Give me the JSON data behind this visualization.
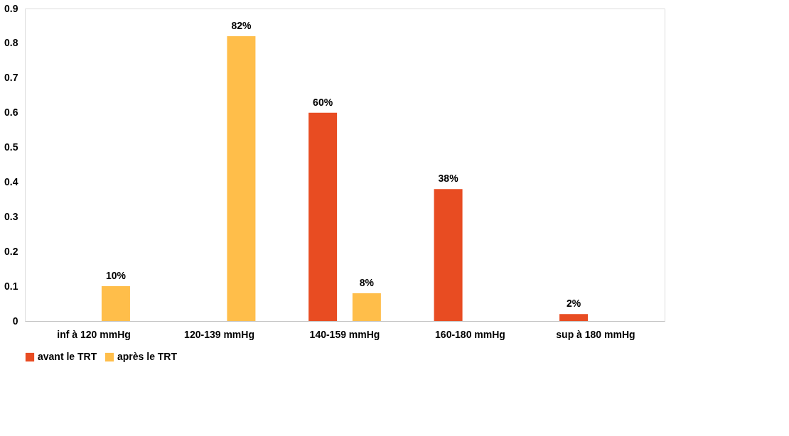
{
  "chart_data": {
    "type": "bar",
    "categories": [
      "inf à 120 mmHg",
      "120-139 mmHg",
      "140-159 mmHg",
      "160-180 mmHg",
      "sup à 180 mmHg"
    ],
    "series": [
      {
        "name": "avant le TRT",
        "color": "#e84c22",
        "values": [
          null,
          null,
          0.6,
          0.38,
          0.02
        ],
        "value_labels": [
          null,
          null,
          "60%",
          "38%",
          "2%"
        ]
      },
      {
        "name": "après le TRT",
        "color": "#ffbe4a",
        "values": [
          0.1,
          0.82,
          0.08,
          null,
          null
        ],
        "value_labels": [
          "10%",
          "82%",
          "8%",
          null,
          null
        ]
      }
    ],
    "ylim": [
      0,
      0.9
    ],
    "yticks": [
      0,
      0.1,
      0.2,
      0.3,
      0.4,
      0.5,
      0.6,
      0.7,
      0.8,
      0.9
    ],
    "grid": false,
    "legend": "bottom"
  }
}
